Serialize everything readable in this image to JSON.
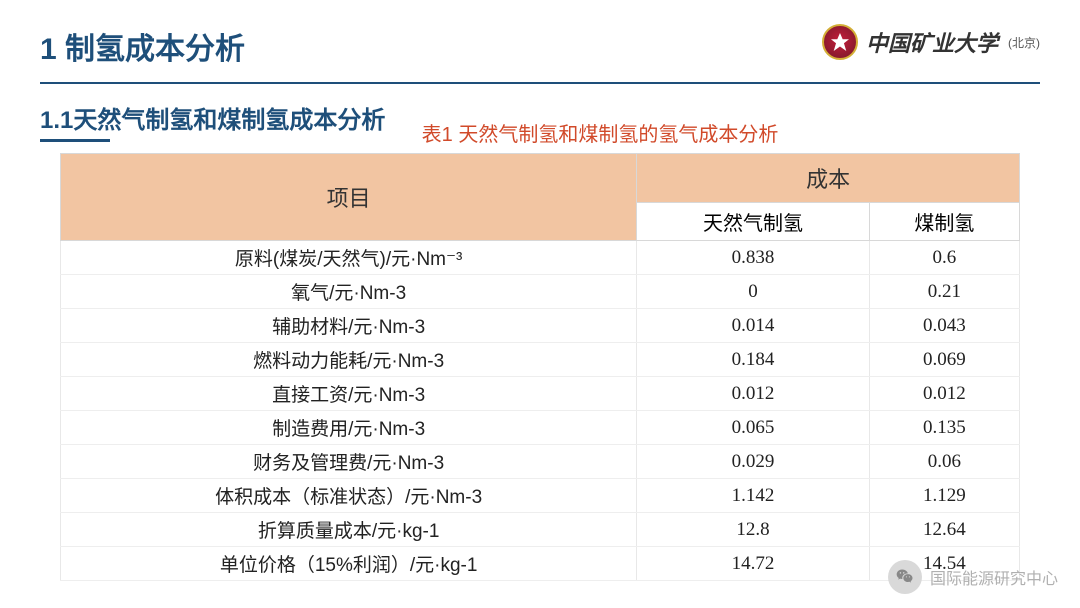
{
  "header": {
    "title": "1 制氢成本分析",
    "university_name": "中国矿业大学",
    "university_suffix": "(北京)"
  },
  "section": {
    "subtitle": "1.1天然气制氢和煤制氢成本分析",
    "table_caption": "表1 天然气制氢和煤制氢的氢气成本分析"
  },
  "table": {
    "header_item": "项目",
    "header_cost": "成本",
    "header_col1": "天然气制氢",
    "header_col2": "煤制氢",
    "header_bg": "#f2c5a2",
    "border_color": "#d8d8d8",
    "rows": [
      {
        "label": "原料(煤炭/天然气)/元·Nm⁻³",
        "c1": "0.838",
        "c2": "0.6"
      },
      {
        "label": "氧气/元·Nm-3",
        "c1": "0",
        "c2": "0.21"
      },
      {
        "label": "辅助材料/元·Nm-3",
        "c1": "0.014",
        "c2": "0.043"
      },
      {
        "label": "燃料动力能耗/元·Nm-3",
        "c1": "0.184",
        "c2": "0.069"
      },
      {
        "label": "直接工资/元·Nm-3",
        "c1": "0.012",
        "c2": "0.012"
      },
      {
        "label": "制造费用/元·Nm-3",
        "c1": "0.065",
        "c2": "0.135"
      },
      {
        "label": "财务及管理费/元·Nm-3",
        "c1": "0.029",
        "c2": "0.06"
      },
      {
        "label": "体积成本（标准状态）/元·Nm-3",
        "c1": "1.142",
        "c2": "1.129"
      },
      {
        "label": "折算质量成本/元·kg-1",
        "c1": "12.8",
        "c2": "12.64"
      },
      {
        "label": "单位价格（15%利润）/元·kg-1",
        "c1": "14.72",
        "c2": "14.54"
      }
    ]
  },
  "watermark": {
    "label": "国际能源研究中心"
  },
  "colors": {
    "primary": "#1e4f7a",
    "caption": "#d14a2a",
    "logo_red": "#c41e3a"
  }
}
